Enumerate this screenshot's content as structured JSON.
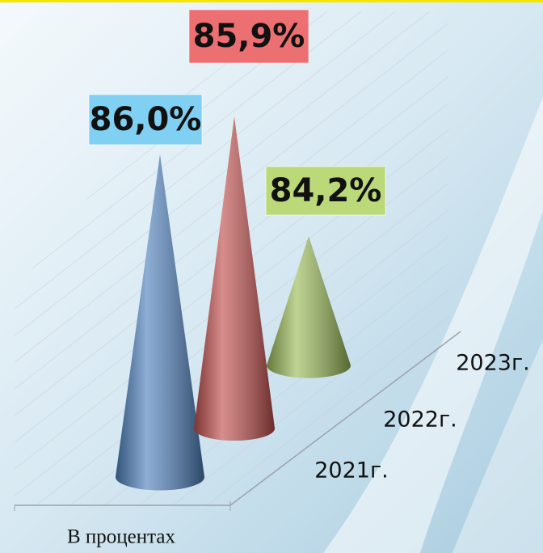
{
  "chart_data": {
    "type": "cone",
    "axis_label": "В процентах",
    "categories": [
      "2021г.",
      "2022г.",
      "2023г."
    ],
    "values": [
      86.0,
      85.9,
      84.2
    ],
    "value_labels": [
      "86,0%",
      "85,9%",
      "84,2%"
    ],
    "colors": [
      "#4f81bd",
      "#c0504d",
      "#9bbb59"
    ],
    "ylim": [
      83,
      86.5
    ]
  }
}
